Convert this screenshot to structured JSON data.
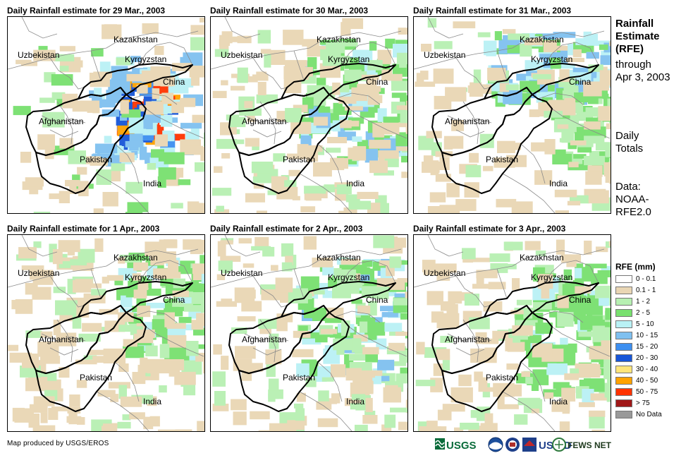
{
  "panels": [
    {
      "title": "Daily Rainfall estimate for 29 Mar., 2003",
      "intensity": "high"
    },
    {
      "title": "Daily Rainfall estimate for 30 Mar., 2003",
      "intensity": "medium"
    },
    {
      "title": "Daily Rainfall estimate for 31 Mar., 2003",
      "intensity": "north"
    },
    {
      "title": "Daily Rainfall estimate for 1 Apr., 2003",
      "intensity": "low"
    },
    {
      "title": "Daily Rainfall estimate for 2 Apr., 2003",
      "intensity": "medium"
    },
    {
      "title": "Daily Rainfall estimate for 3 Apr., 2003",
      "intensity": "east"
    }
  ],
  "map_labels": {
    "kazakhstan": "Kazakhstan",
    "uzbekistan": "Uzbekistan",
    "kyrgyzstan": "Kyrgyzstan",
    "china": "China",
    "afghanistan": "Afghanistan",
    "pakistan": "Pakistan",
    "india": "India"
  },
  "side": {
    "title_line1": "Rainfall",
    "title_line2": "Estimate",
    "title_line3": "(RFE)",
    "through": "through",
    "date": "Apr 3, 2003",
    "daily": "Daily",
    "totals": "Totals",
    "data_label": "Data:",
    "data_src1": "NOAA-",
    "data_src2": "RFE2.0"
  },
  "legend": {
    "title": "RFE (mm)",
    "items": [
      {
        "label": "0 - 0.1",
        "color": "#ffffff"
      },
      {
        "label": "0.1 - 1",
        "color": "#e9d6b4"
      },
      {
        "label": "1 - 2",
        "color": "#b7f0b2"
      },
      {
        "label": "2 - 5",
        "color": "#78e06e"
      },
      {
        "label": "5 - 10",
        "color": "#b9f1f5"
      },
      {
        "label": "10 - 15",
        "color": "#7fc0f0"
      },
      {
        "label": "15 - 20",
        "color": "#3d8ff0"
      },
      {
        "label": "20 - 30",
        "color": "#1655d8"
      },
      {
        "label": "30 - 40",
        "color": "#ffe57a"
      },
      {
        "label": "40 - 50",
        "color": "#ffa200"
      },
      {
        "label": "50 - 75",
        "color": "#ff3300"
      },
      {
        "label": "> 75",
        "color": "#a01818"
      },
      {
        "label": "No Data",
        "color": "#999999"
      }
    ]
  },
  "credit": "Map produced by USGS/EROS",
  "logos": {
    "usgs": "USGS",
    "usaid": "USAID",
    "fews": "FEWS NET"
  }
}
